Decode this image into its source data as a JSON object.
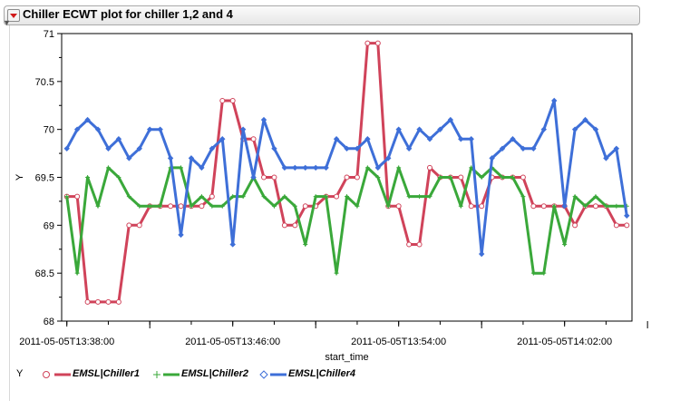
{
  "panel": {
    "title": "Chiller ECWT plot for chiller 1,2 and 4"
  },
  "colors": {
    "chiller1": "#d0435a",
    "chiller2": "#3aa83a",
    "chiller4": "#3e6fd8"
  },
  "chart_data": {
    "type": "line",
    "xlabel": "start_time",
    "ylabel": "Y",
    "ylim": [
      68,
      71
    ],
    "yticks": [
      68,
      68.5,
      69,
      69.5,
      70,
      70.5,
      71
    ],
    "xlim": [
      -0.5,
      54.5
    ],
    "xtick_labels": [
      {
        "x": 0,
        "label": "2011-05-05T13:38:00"
      },
      {
        "x": 16,
        "label": "2011-05-05T13:46:00"
      },
      {
        "x": 32,
        "label": "2011-05-05T13:54:00"
      },
      {
        "x": 48,
        "label": "2011-05-05T14:02:00"
      }
    ],
    "legend_title": "Y",
    "series": [
      {
        "name": "EMSL|Chiller1",
        "marker": "circle",
        "values": [
          69.3,
          69.3,
          68.2,
          68.2,
          68.2,
          68.2,
          69.0,
          69.0,
          69.2,
          69.2,
          69.2,
          69.2,
          69.2,
          69.2,
          69.3,
          70.3,
          70.3,
          69.9,
          69.9,
          69.5,
          69.5,
          69.0,
          69.0,
          69.2,
          69.2,
          69.3,
          69.3,
          69.5,
          69.5,
          70.9,
          70.9,
          69.2,
          69.2,
          68.8,
          68.8,
          69.6,
          69.5,
          69.5,
          69.5,
          69.2,
          69.2,
          69.5,
          69.5,
          69.5,
          69.5,
          69.2,
          69.2,
          69.2,
          69.2,
          69.0,
          69.2,
          69.2,
          69.2,
          69.0,
          69.0
        ]
      },
      {
        "name": "EMSL|Chiller2",
        "marker": "plus",
        "values": [
          69.3,
          68.5,
          69.5,
          69.2,
          69.6,
          69.5,
          69.3,
          69.2,
          69.2,
          69.2,
          69.6,
          69.6,
          69.2,
          69.3,
          69.2,
          69.2,
          69.3,
          69.3,
          69.5,
          69.3,
          69.2,
          69.3,
          69.2,
          68.8,
          69.3,
          69.3,
          68.5,
          69.3,
          69.2,
          69.6,
          69.5,
          69.2,
          69.6,
          69.3,
          69.3,
          69.3,
          69.5,
          69.5,
          69.2,
          69.6,
          69.5,
          69.6,
          69.5,
          69.5,
          69.3,
          68.5,
          68.5,
          69.2,
          68.8,
          69.3,
          69.2,
          69.3,
          69.2,
          69.2,
          69.2
        ]
      },
      {
        "name": "EMSL|Chiller4",
        "marker": "diamond",
        "values": [
          69.8,
          70.0,
          70.1,
          70.0,
          69.8,
          69.9,
          69.7,
          69.8,
          70.0,
          70.0,
          69.7,
          68.9,
          69.7,
          69.6,
          69.8,
          69.9,
          68.8,
          70.0,
          69.5,
          70.1,
          69.8,
          69.6,
          69.6,
          69.6,
          69.6,
          69.6,
          69.9,
          69.8,
          69.8,
          69.9,
          69.6,
          69.7,
          70.0,
          69.8,
          70.0,
          69.9,
          70.0,
          70.1,
          69.9,
          69.9,
          68.7,
          69.7,
          69.8,
          69.9,
          69.8,
          69.8,
          70.0,
          70.3,
          69.2,
          70.0,
          70.1,
          70.0,
          69.7,
          69.8,
          69.1
        ]
      }
    ]
  }
}
